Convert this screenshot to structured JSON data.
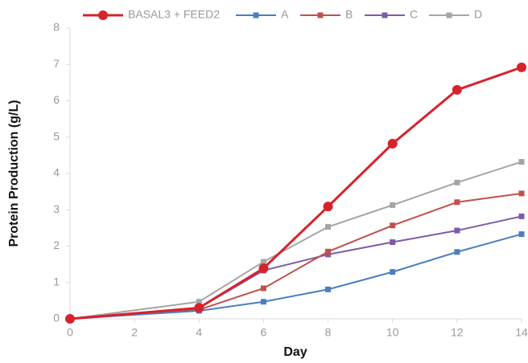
{
  "chart_data": {
    "type": "line",
    "x_label": "Day",
    "y_label": "Protein Production (g/L)",
    "x": [
      0,
      4,
      6,
      8,
      10,
      12,
      14
    ],
    "series": [
      {
        "name": "BASAL3 + FEED2",
        "color": "#d7222c",
        "values": [
          0,
          0.3,
          1.39,
          3.09,
          4.82,
          6.3,
          6.92
        ]
      },
      {
        "name": "A",
        "color": "#4a7ebf",
        "values": [
          0,
          0.22,
          0.47,
          0.81,
          1.29,
          1.84,
          2.33
        ]
      },
      {
        "name": "B",
        "color": "#c0504d",
        "values": [
          0,
          0.25,
          0.84,
          1.85,
          2.57,
          3.21,
          3.45
        ]
      },
      {
        "name": "C",
        "color": "#7f5ba6",
        "values": [
          0,
          0.3,
          1.33,
          1.77,
          2.11,
          2.43,
          2.82
        ]
      },
      {
        "name": "D",
        "color": "#a5a5a5",
        "values": [
          0,
          0.47,
          1.57,
          2.53,
          3.13,
          3.75,
          4.32
        ]
      }
    ],
    "xlim": [
      0,
      14
    ],
    "xticks": [
      0,
      2,
      4,
      6,
      8,
      10,
      12,
      14
    ],
    "ylim": [
      0,
      8
    ],
    "yticks": [
      0,
      1,
      2,
      3,
      4,
      5,
      6,
      7,
      8
    ],
    "grid": false,
    "legend": "top"
  }
}
